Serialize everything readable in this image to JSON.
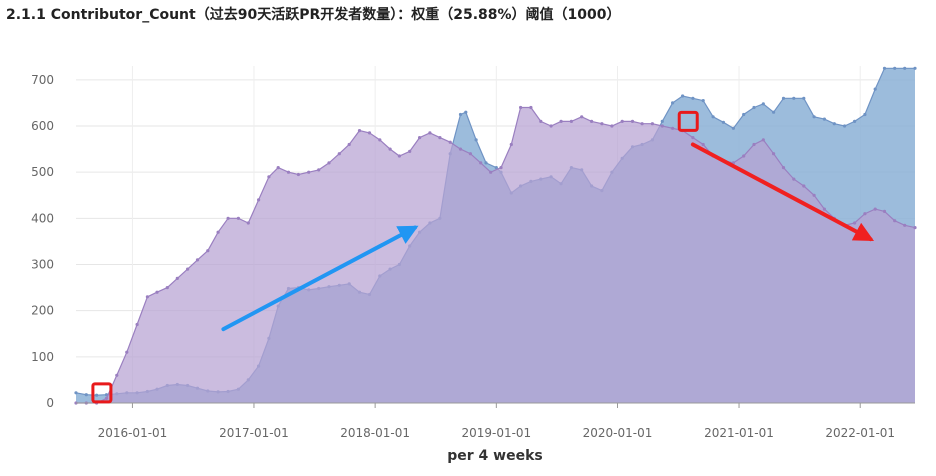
{
  "title": "2.1.1 Contributor_Count（过去90天活跃PR开发者数量）：权重（25.88%）阈值（1000）",
  "chart_data": {
    "type": "area",
    "xlabel": "per 4 weeks",
    "ylabel": "",
    "ylim": [
      0,
      730
    ],
    "xlim": [
      "2015-07-15",
      "2022-06-15"
    ],
    "yticks": [
      0,
      100,
      200,
      300,
      400,
      500,
      600,
      700
    ],
    "xticks": [
      "2016-01-01",
      "2017-01-01",
      "2018-01-01",
      "2019-01-01",
      "2020-01-01",
      "2021-01-01",
      "2022-01-01"
    ],
    "grid": true,
    "legend": "none",
    "series": [
      {
        "color": "#8bb0d6",
        "x": [
          "2015-07-15",
          "2015-08-15",
          "2015-09-15",
          "2015-10-15",
          "2015-11-15",
          "2015-12-15",
          "2016-01-15",
          "2016-02-15",
          "2016-03-15",
          "2016-04-15",
          "2016-05-15",
          "2016-06-15",
          "2016-07-15",
          "2016-08-15",
          "2016-09-15",
          "2016-10-15",
          "2016-11-15",
          "2016-12-15",
          "2017-01-15",
          "2017-02-15",
          "2017-03-15",
          "2017-04-15",
          "2017-05-15",
          "2017-06-15",
          "2017-07-15",
          "2017-08-15",
          "2017-09-15",
          "2017-10-15",
          "2017-11-15",
          "2017-12-15",
          "2018-01-15",
          "2018-02-15",
          "2018-03-15",
          "2018-04-15",
          "2018-05-15",
          "2018-06-15",
          "2018-07-15",
          "2018-08-15",
          "2018-09-15",
          "2018-10-01",
          "2018-11-01",
          "2018-12-01",
          "2019-01-01",
          "2019-01-15",
          "2019-02-15",
          "2019-03-15",
          "2019-04-15",
          "2019-05-15",
          "2019-06-15",
          "2019-07-15",
          "2019-08-15",
          "2019-09-15",
          "2019-10-15",
          "2019-11-15",
          "2019-12-15",
          "2020-01-15",
          "2020-02-15",
          "2020-03-15",
          "2020-04-15",
          "2020-05-15",
          "2020-06-15",
          "2020-07-15",
          "2020-08-15",
          "2020-09-15",
          "2020-10-15",
          "2020-11-15",
          "2020-12-15",
          "2021-01-15",
          "2021-02-15",
          "2021-03-15",
          "2021-04-15",
          "2021-05-15",
          "2021-06-15",
          "2021-07-15",
          "2021-08-15",
          "2021-09-15",
          "2021-10-15",
          "2021-11-15",
          "2021-12-15",
          "2022-01-15",
          "2022-02-15",
          "2022-03-15",
          "2022-04-15",
          "2022-05-15",
          "2022-06-15"
        ],
        "values": [
          22,
          18,
          17,
          18,
          20,
          22,
          22,
          25,
          30,
          38,
          40,
          38,
          32,
          26,
          24,
          25,
          30,
          50,
          80,
          140,
          210,
          248,
          250,
          245,
          248,
          252,
          255,
          258,
          240,
          235,
          275,
          290,
          300,
          340,
          370,
          390,
          400,
          540,
          625,
          630,
          570,
          520,
          510,
          500,
          455,
          470,
          480,
          485,
          490,
          475,
          510,
          505,
          470,
          460,
          500,
          530,
          555,
          560,
          570,
          610,
          650,
          665,
          660,
          655,
          620,
          608,
          595,
          625,
          640,
          648,
          630,
          660,
          660,
          660,
          620,
          615,
          605,
          600,
          610,
          625,
          680,
          725,
          725,
          725,
          725
        ]
      },
      {
        "color": "#b7a2d2",
        "x": [
          "2015-07-15",
          "2015-08-15",
          "2015-09-15",
          "2015-10-15",
          "2015-11-15",
          "2015-12-15",
          "2016-01-15",
          "2016-02-15",
          "2016-03-15",
          "2016-04-15",
          "2016-05-15",
          "2016-06-15",
          "2016-07-15",
          "2016-08-15",
          "2016-09-15",
          "2016-10-15",
          "2016-11-15",
          "2016-12-15",
          "2017-01-15",
          "2017-02-15",
          "2017-03-15",
          "2017-04-15",
          "2017-05-15",
          "2017-06-15",
          "2017-07-15",
          "2017-08-15",
          "2017-09-15",
          "2017-10-15",
          "2017-11-15",
          "2017-12-15",
          "2018-01-15",
          "2018-02-15",
          "2018-03-15",
          "2018-04-15",
          "2018-05-15",
          "2018-06-15",
          "2018-07-15",
          "2018-08-15",
          "2018-09-15",
          "2018-10-15",
          "2018-11-15",
          "2018-12-15",
          "2019-01-15",
          "2019-02-15",
          "2019-03-15",
          "2019-04-15",
          "2019-05-15",
          "2019-06-15",
          "2019-07-15",
          "2019-08-15",
          "2019-09-15",
          "2019-10-15",
          "2019-11-15",
          "2019-12-15",
          "2020-01-15",
          "2020-02-15",
          "2020-03-15",
          "2020-04-15",
          "2020-05-15",
          "2020-06-15",
          "2020-07-15",
          "2020-08-15",
          "2020-09-15",
          "2020-10-15",
          "2020-11-15",
          "2020-12-15",
          "2021-01-15",
          "2021-02-15",
          "2021-03-15",
          "2021-04-15",
          "2021-05-15",
          "2021-06-15",
          "2021-07-15",
          "2021-08-15",
          "2021-09-15",
          "2021-10-15",
          "2021-11-15",
          "2021-12-15",
          "2022-01-15",
          "2022-02-15",
          "2022-03-15",
          "2022-04-15",
          "2022-05-15",
          "2022-06-15"
        ],
        "values": [
          0,
          0,
          0,
          10,
          60,
          110,
          170,
          230,
          240,
          250,
          270,
          290,
          310,
          330,
          370,
          400,
          400,
          390,
          440,
          490,
          510,
          500,
          495,
          500,
          505,
          520,
          540,
          560,
          590,
          585,
          570,
          550,
          535,
          545,
          575,
          585,
          575,
          565,
          550,
          540,
          520,
          500,
          510,
          560,
          640,
          640,
          610,
          600,
          610,
          610,
          620,
          610,
          605,
          600,
          610,
          610,
          605,
          605,
          600,
          595,
          590,
          575,
          560,
          535,
          525,
          520,
          535,
          560,
          570,
          540,
          510,
          485,
          470,
          450,
          420,
          400,
          385,
          390,
          410,
          420,
          415,
          395,
          385,
          380
        ]
      }
    ],
    "annotations": {
      "markers": [
        {
          "type": "red-square",
          "x": "2015-10-01",
          "y": 22
        },
        {
          "type": "red-square",
          "x": "2020-08-01",
          "y": 610
        }
      ],
      "arrows": [
        {
          "color": "#2196f3",
          "from": {
            "x": "2016-10-01",
            "y": 160
          },
          "to": {
            "x": "2018-05-01",
            "y": 380
          }
        },
        {
          "color": "#f02020",
          "from": {
            "x": "2020-08-15",
            "y": 560
          },
          "to": {
            "x": "2022-02-01",
            "y": 355
          }
        }
      ]
    }
  }
}
